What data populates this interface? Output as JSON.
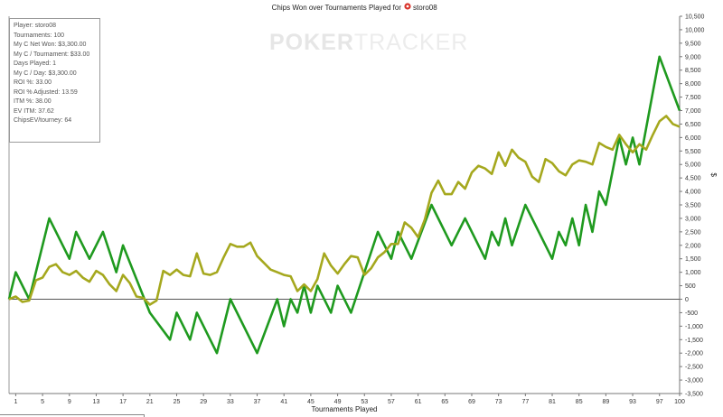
{
  "chart_data": {
    "type": "line",
    "title": "Chips Won over Tournaments Played for",
    "player_name": "storo08",
    "xlabel": "Tournaments Played",
    "ylabel": "$",
    "xlim": [
      0,
      100
    ],
    "ylim": [
      -3500,
      10500
    ],
    "y_ticks": [
      10500,
      10000,
      9500,
      9000,
      8500,
      8000,
      7500,
      7000,
      6500,
      6000,
      5500,
      5000,
      4500,
      4000,
      3500,
      3000,
      2500,
      2000,
      1500,
      1000,
      500,
      0,
      -500,
      -1000,
      -1500,
      -2000,
      -2500,
      -3000,
      -3500
    ],
    "y_tick_labels": [
      "10,500",
      "10,000",
      "9,500",
      "9,000",
      "8,500",
      "8,000",
      "7,500",
      "7,000",
      "6,500",
      "6,000",
      "5,500",
      "5,000",
      "4,500",
      "4,000",
      "3,500",
      "3,000",
      "2,500",
      "2,000",
      "1,500",
      "1,000",
      "500",
      "0",
      "-500",
      "-1,000",
      "-1,500",
      "-2,000",
      "-2,500",
      "-3,000",
      "-3,500"
    ],
    "x_ticks": [
      "1",
      "5",
      "9",
      "13",
      "17",
      "21",
      "25",
      "29",
      "33",
      "37",
      "41",
      "45",
      "49",
      "53",
      "57",
      "61",
      "65",
      "69",
      "73",
      "77",
      "81",
      "85",
      "89",
      "93",
      "97",
      "100"
    ],
    "grid": false,
    "series": [
      {
        "color": "#1f9a1f",
        "points": [
          [
            0,
            0
          ],
          [
            1,
            1000
          ],
          [
            3,
            0
          ],
          [
            6,
            3000
          ],
          [
            9,
            1500
          ],
          [
            10,
            2500
          ],
          [
            12,
            1500
          ],
          [
            14,
            2500
          ],
          [
            16,
            1000
          ],
          [
            17,
            2000
          ],
          [
            21,
            -500
          ],
          [
            24,
            -1500
          ],
          [
            25,
            -500
          ],
          [
            27,
            -1500
          ],
          [
            28,
            -500
          ],
          [
            31,
            -2000
          ],
          [
            33,
            0
          ],
          [
            37,
            -2000
          ],
          [
            40,
            0
          ],
          [
            41,
            -1000
          ],
          [
            42,
            0
          ],
          [
            43,
            -500
          ],
          [
            44,
            500
          ],
          [
            45,
            -500
          ],
          [
            46,
            500
          ],
          [
            48,
            -500
          ],
          [
            49,
            500
          ],
          [
            51,
            -500
          ],
          [
            55,
            2500
          ],
          [
            57,
            1500
          ],
          [
            58,
            2500
          ],
          [
            60,
            1500
          ],
          [
            63,
            3500
          ],
          [
            66,
            2000
          ],
          [
            68,
            3000
          ],
          [
            71,
            1500
          ],
          [
            72,
            2500
          ],
          [
            73,
            2000
          ],
          [
            74,
            3000
          ],
          [
            75,
            2000
          ],
          [
            77,
            3500
          ],
          [
            81,
            1500
          ],
          [
            82,
            2500
          ],
          [
            83,
            2000
          ],
          [
            84,
            3000
          ],
          [
            85,
            2000
          ],
          [
            86,
            3500
          ],
          [
            87,
            2500
          ],
          [
            88,
            4000
          ],
          [
            89,
            3500
          ],
          [
            91,
            6000
          ],
          [
            92,
            5000
          ],
          [
            93,
            6000
          ],
          [
            94,
            5000
          ],
          [
            97,
            9000
          ],
          [
            100,
            7000
          ]
        ]
      },
      {
        "color": "#a5a81e",
        "points": [
          [
            0,
            0
          ],
          [
            1,
            100
          ],
          [
            2,
            -100
          ],
          [
            3,
            -50
          ],
          [
            4,
            700
          ],
          [
            5,
            800
          ],
          [
            6,
            1200
          ],
          [
            7,
            1300
          ],
          [
            8,
            1000
          ],
          [
            9,
            900
          ],
          [
            10,
            1050
          ],
          [
            11,
            800
          ],
          [
            12,
            650
          ],
          [
            13,
            1050
          ],
          [
            14,
            900
          ],
          [
            15,
            550
          ],
          [
            16,
            300
          ],
          [
            17,
            900
          ],
          [
            18,
            600
          ],
          [
            19,
            100
          ],
          [
            20,
            50
          ],
          [
            21,
            -200
          ],
          [
            22,
            -50
          ],
          [
            23,
            1050
          ],
          [
            24,
            900
          ],
          [
            25,
            1100
          ],
          [
            26,
            900
          ],
          [
            27,
            850
          ],
          [
            28,
            1700
          ],
          [
            29,
            950
          ],
          [
            30,
            900
          ],
          [
            31,
            1000
          ],
          [
            32,
            1550
          ],
          [
            33,
            2050
          ],
          [
            34,
            1950
          ],
          [
            35,
            1950
          ],
          [
            36,
            2100
          ],
          [
            37,
            1600
          ],
          [
            38,
            1350
          ],
          [
            39,
            1100
          ],
          [
            40,
            1000
          ],
          [
            41,
            900
          ],
          [
            42,
            850
          ],
          [
            43,
            300
          ],
          [
            44,
            550
          ],
          [
            45,
            300
          ],
          [
            46,
            750
          ],
          [
            47,
            1700
          ],
          [
            48,
            1250
          ],
          [
            49,
            950
          ],
          [
            50,
            1300
          ],
          [
            51,
            1600
          ],
          [
            52,
            1550
          ],
          [
            53,
            900
          ],
          [
            54,
            1150
          ],
          [
            55,
            1550
          ],
          [
            56,
            1750
          ],
          [
            57,
            2050
          ],
          [
            58,
            2050
          ],
          [
            59,
            2850
          ],
          [
            60,
            2650
          ],
          [
            61,
            2300
          ],
          [
            62,
            2950
          ],
          [
            63,
            3950
          ],
          [
            64,
            4400
          ],
          [
            65,
            3900
          ],
          [
            66,
            3900
          ],
          [
            67,
            4350
          ],
          [
            68,
            4100
          ],
          [
            69,
            4700
          ],
          [
            70,
            4950
          ],
          [
            71,
            4850
          ],
          [
            72,
            4650
          ],
          [
            73,
            5450
          ],
          [
            74,
            4950
          ],
          [
            75,
            5550
          ],
          [
            76,
            5250
          ],
          [
            77,
            5100
          ],
          [
            78,
            4550
          ],
          [
            79,
            4350
          ],
          [
            80,
            5200
          ],
          [
            81,
            5050
          ],
          [
            82,
            4750
          ],
          [
            83,
            4600
          ],
          [
            84,
            5000
          ],
          [
            85,
            5150
          ],
          [
            86,
            5100
          ],
          [
            87,
            5000
          ],
          [
            88,
            5800
          ],
          [
            89,
            5650
          ],
          [
            90,
            5550
          ],
          [
            91,
            6100
          ],
          [
            92,
            5750
          ],
          [
            93,
            5450
          ],
          [
            94,
            5750
          ],
          [
            95,
            5550
          ],
          [
            96,
            6100
          ],
          [
            97,
            6600
          ],
          [
            98,
            6800
          ],
          [
            99,
            6500
          ],
          [
            100,
            6400
          ]
        ]
      }
    ]
  },
  "stats": [
    "Player: storo08",
    "Tournaments: 100",
    "My C Net Won: $3,300.00",
    "My C / Tournament: $33.00",
    "Days Played: 1",
    "My C / Day: $3,300.00",
    "ROI %: 33.00",
    "ROI % Adjusted: 13.59",
    "ITM %: 38.00",
    "EV ITM: 37.62",
    "ChipsEV/tourney: 64"
  ],
  "watermark": {
    "poker": "POKER",
    "tracker": "TRACKER"
  },
  "colors": {
    "poker_icon": "#d9342b"
  }
}
